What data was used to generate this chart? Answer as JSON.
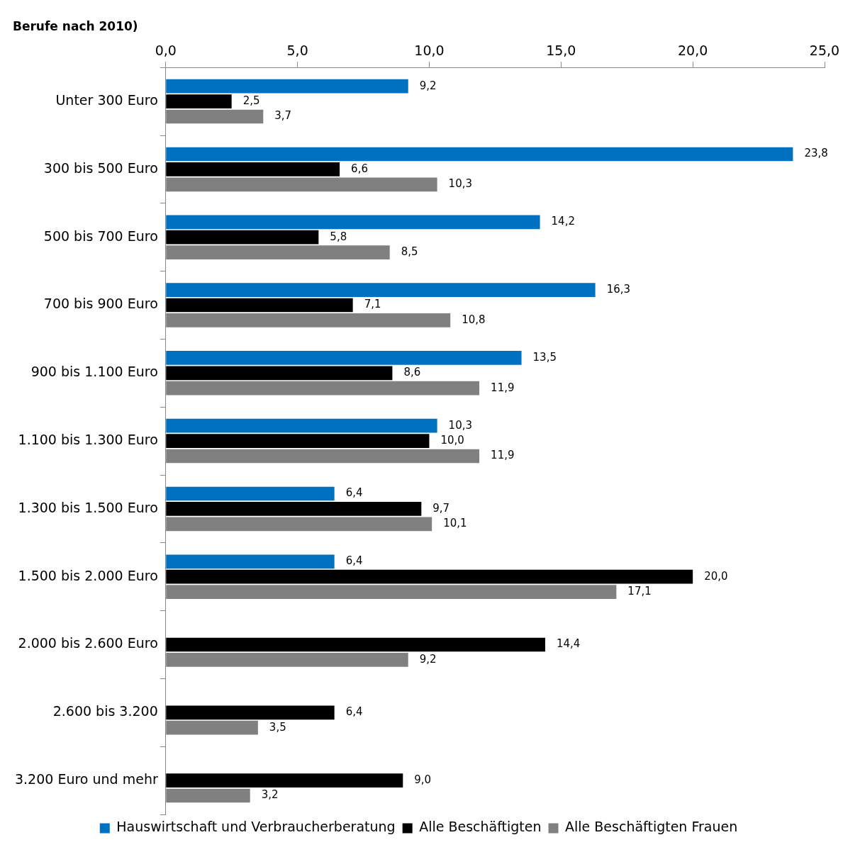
{
  "chart_data": {
    "type": "bar",
    "orientation": "horizontal",
    "title": "Berufe nach 2010)",
    "categories": [
      "Unter 300 Euro",
      "300 bis 500 Euro",
      "500 bis 700 Euro",
      "700 bis 900 Euro",
      "900 bis 1.100 Euro",
      "1.100 bis 1.300 Euro",
      "1.300 bis 1.500 Euro",
      "1.500 bis 2.000 Euro",
      "2.000 bis 2.600 Euro",
      "2.600 bis 3.200",
      "3.200 Euro und mehr"
    ],
    "series": [
      {
        "name": "Hauswirtschaft und Verbraucherberatung",
        "color": "#0070c0",
        "values": [
          9.2,
          23.8,
          14.2,
          16.3,
          13.5,
          10.3,
          6.4,
          6.4,
          null,
          null,
          null
        ],
        "value_labels": [
          "9,2",
          "23,8",
          "14,2",
          "16,3",
          "13,5",
          "10,3",
          "6,4",
          "6,4",
          null,
          null,
          null
        ]
      },
      {
        "name": "Alle Beschäftigten",
        "color": "#000000",
        "values": [
          2.5,
          6.6,
          5.8,
          7.1,
          8.6,
          10.0,
          9.7,
          20.0,
          14.4,
          6.4,
          9.0
        ],
        "value_labels": [
          "2,5",
          "6,6",
          "5,8",
          "7,1",
          "8,6",
          "10,0",
          "9,7",
          "20,0",
          "14,4",
          "6,4",
          "9,0"
        ]
      },
      {
        "name": "Alle Beschäftigten Frauen",
        "color": "#808080",
        "values": [
          3.7,
          10.3,
          8.5,
          10.8,
          11.9,
          11.9,
          10.1,
          17.1,
          9.2,
          3.5,
          3.2
        ],
        "value_labels": [
          "3,7",
          "10,3",
          "8,5",
          "10,8",
          "11,9",
          "11,9",
          "10,1",
          "17,1",
          "9,2",
          "3,5",
          "3,2"
        ]
      }
    ],
    "xlim": [
      0,
      25
    ],
    "xticks": [
      {
        "value": 0,
        "label": "0,0"
      },
      {
        "value": 5,
        "label": "5,0"
      },
      {
        "value": 10,
        "label": "10,0"
      },
      {
        "value": 15,
        "label": "15,0"
      },
      {
        "value": 20,
        "label": "20,0"
      },
      {
        "value": 25,
        "label": "25,0"
      }
    ],
    "grid": false,
    "legend": "bottom"
  }
}
